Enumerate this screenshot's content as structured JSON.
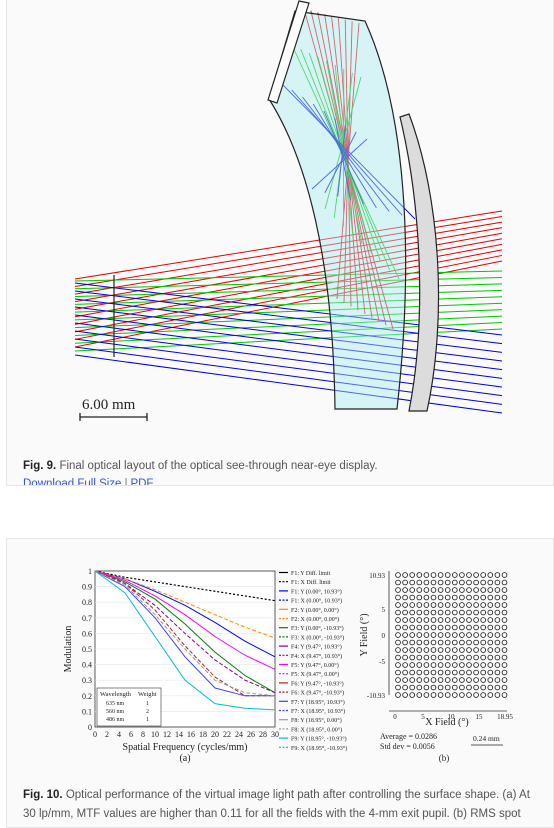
{
  "fig9": {
    "scale_label": "6.00 mm",
    "caption_label": "Fig. 9.",
    "caption_text": "Final optical layout of the optical see-through near-eye display.",
    "download_label": "Download Full Size",
    "separator": "|",
    "pdf_label": "PDF",
    "ray_colors": {
      "red": "#e60000",
      "green": "#00c800",
      "blue": "#0000dd"
    }
  },
  "fig10": {
    "mtf": {
      "y_label": "Modulation",
      "x_label": "Spatial Frequency (cycles/mm)",
      "sub_label": "(a)",
      "y_ticks": [
        "1",
        "0.9",
        "0.8",
        "0.7",
        "0.6",
        "0.5",
        "0.4",
        "0.3",
        "0.2",
        "0.1",
        "0"
      ],
      "x_ticks": [
        "0",
        "2",
        "4",
        "6",
        "8",
        "10",
        "12",
        "14",
        "16",
        "18",
        "20",
        "22",
        "24",
        "26",
        "28",
        "30"
      ],
      "wavelength_table": {
        "headers": [
          "Wavelength",
          "Weight"
        ],
        "rows": [
          [
            "635 nm",
            "1"
          ],
          [
            "560 nm",
            "2"
          ],
          [
            "486 nm",
            "1"
          ]
        ]
      },
      "legend": [
        "F1: Y Diff. limit",
        "F1: X Diff. limit",
        "F1: Y (0.00°, 10.93°)",
        "F1: X (0.00°, 10.93°)",
        "F2: Y (0.00°, 0.00°)",
        "F2: X (0.00°, 0.00°)",
        "F3: Y (0.00°, -10.93°)",
        "F3: X (0.00°, -10.93°)",
        "F4: Y (9.47°, 10.93°)",
        "F4: X (9.47°, 10.93°)",
        "F5: Y (9.47°, 0.00°)",
        "F5: X (9.47°, 0.00°)",
        "F6: Y (9.47°, -10.93°)",
        "F6: X (9.47°, -10.93°)",
        "F7: Y (18.95°, 10.93°)",
        "F7: X (18.95°, 10.93°)",
        "F8: Y (18.95°, 0.00°)",
        "F8: X (18.95°, 0.00°)",
        "F9: Y (18.95°, -10.93°)",
        "F9: X (18.95°, -10.93°)"
      ],
      "legend_colors": [
        "#000000",
        "#000000",
        "#0000ff",
        "#0000ff",
        "#ff8c00",
        "#ff8c00",
        "#008000",
        "#008000",
        "#8b008b",
        "#8b008b",
        "#ff00ff",
        "#ff00ff",
        "#b22222",
        "#b22222",
        "#4040ff",
        "#4040ff",
        "#999999",
        "#999999",
        "#00bcd4",
        "#00bcd4"
      ]
    },
    "spot": {
      "y_label": "Y Field (°)",
      "x_label": "X Field (°)",
      "sub_label": "(b)",
      "y_ticks": [
        "10.93",
        "5",
        "0",
        "-5",
        "-10.93"
      ],
      "x_ticks": [
        "0",
        "5",
        "10",
        "15",
        "18.95"
      ],
      "average": "Average = 0.0286",
      "std_dev": "Std dev = 0.0056",
      "scale_label": "0.24 mm"
    },
    "caption_label": "Fig. 10.",
    "caption_text": "Optical performance of the virtual image light path after controlling the surface shape. (a) At 30 lp/mm, MTF values are higher than 0.11 for all the fields with the 4-mm exit pupil. (b) RMS spot diameter"
  },
  "chart_data": [
    {
      "type": "line",
      "title": "",
      "xlabel": "Spatial Frequency (cycles/mm)",
      "ylabel": "Modulation",
      "xlim": [
        0,
        30
      ],
      "ylim": [
        0,
        1
      ],
      "x": [
        0,
        5,
        10,
        15,
        20,
        25,
        30
      ],
      "series": [
        {
          "name": "F1: Y Diff. limit",
          "values": [
            1,
            0.96,
            0.93,
            0.9,
            0.87,
            0.84,
            0.81
          ]
        },
        {
          "name": "F1: X Diff. limit",
          "values": [
            1,
            0.96,
            0.93,
            0.9,
            0.87,
            0.84,
            0.81
          ]
        },
        {
          "name": "F1: Y (0.00°, 10.93°)",
          "values": [
            1,
            0.95,
            0.87,
            0.78,
            0.67,
            0.55,
            0.45
          ]
        },
        {
          "name": "F2: Y (0.00°, 0.00°)",
          "values": [
            1,
            0.95,
            0.88,
            0.8,
            0.72,
            0.64,
            0.57
          ]
        },
        {
          "name": "F3: Y (0.00°, -10.93°)",
          "values": [
            1,
            0.93,
            0.82,
            0.66,
            0.48,
            0.33,
            0.22
          ]
        },
        {
          "name": "F4: Y (9.47°, 10.93°)",
          "values": [
            1,
            0.92,
            0.78,
            0.6,
            0.43,
            0.3,
            0.22
          ]
        },
        {
          "name": "F5: Y (9.47°, 0.00°)",
          "values": [
            1,
            0.94,
            0.84,
            0.72,
            0.58,
            0.46,
            0.37
          ]
        },
        {
          "name": "F6: Y (9.47°, -10.93°)",
          "values": [
            1,
            0.92,
            0.75,
            0.52,
            0.32,
            0.2,
            0.2
          ]
        },
        {
          "name": "F7: Y (18.95°, 10.93°)",
          "values": [
            1,
            0.9,
            0.7,
            0.45,
            0.25,
            0.2,
            0.2
          ]
        },
        {
          "name": "F8: Y (18.95°, 0.00°)",
          "values": [
            1,
            0.91,
            0.72,
            0.5,
            0.3,
            0.22,
            0.2
          ]
        },
        {
          "name": "F9: Y (18.95°, -10.93°)",
          "values": [
            1,
            0.86,
            0.58,
            0.3,
            0.15,
            0.12,
            0.11
          ]
        }
      ]
    },
    {
      "type": "scatter",
      "title": "",
      "xlabel": "X Field (°)",
      "ylabel": "Y Field (°)",
      "xlim": [
        0,
        18.95
      ],
      "ylim": [
        -10.93,
        10.93
      ],
      "grid": {
        "columns": 16,
        "rows": 17
      }
    }
  ]
}
